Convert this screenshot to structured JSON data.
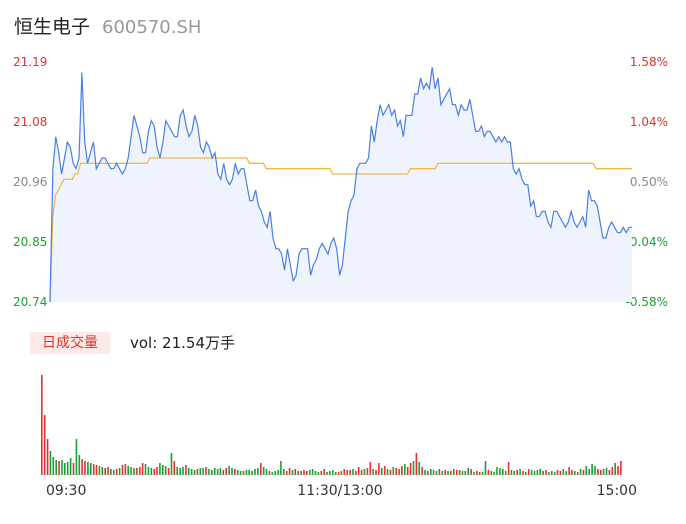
{
  "header": {
    "name": "恒生电子",
    "code": "600570.SH"
  },
  "colors": {
    "price": "#4a7fe6",
    "avg": "#f2b94a",
    "up": "#e0332e",
    "down": "#1aa135",
    "neutral": "#888888"
  },
  "volume_panel": {
    "label": "日成交量",
    "text": "vol: 21.54万手"
  },
  "chart_data": [
    {
      "type": "line",
      "ylim": [
        20.74,
        21.19
      ],
      "y_ticks_left": [
        "21.19",
        "21.08",
        "20.96",
        "20.85",
        "20.74"
      ],
      "y_ticks_right": [
        "1.58%",
        "1.04%",
        "0.50%",
        "-0.04%",
        "-0.58%"
      ],
      "x_ticks": [
        "09:30",
        "11:30/13:00",
        "15:00"
      ],
      "series": [
        {
          "values": [
            20.74,
            20.99,
            21.05,
            21.02,
            20.98,
            21.01,
            21.04,
            21.03,
            21.0,
            20.99,
            21.01,
            21.17,
            21.04,
            21.0,
            21.02,
            21.04,
            20.99,
            21.0,
            21.01,
            21.01,
            21.0,
            20.99,
            20.99,
            21.0,
            20.99,
            20.98,
            20.99,
            21.01,
            21.05,
            21.09,
            21.07,
            21.05,
            21.02,
            21.02,
            21.06,
            21.08,
            21.07,
            21.03,
            21.01,
            21.04,
            21.08,
            21.07,
            21.06,
            21.05,
            21.05,
            21.09,
            21.1,
            21.07,
            21.05,
            21.06,
            21.09,
            21.07,
            21.03,
            21.02,
            21.04,
            21.03,
            21.01,
            21.02,
            20.98,
            20.97,
            21.0,
            20.97,
            20.96,
            20.97,
            21.0,
            20.98,
            20.99,
            20.99,
            20.96,
            20.93,
            20.93,
            20.95,
            20.92,
            20.91,
            20.89,
            20.88,
            20.91,
            20.86,
            20.84,
            20.84,
            20.83,
            20.8,
            20.84,
            20.81,
            20.78,
            20.79,
            20.83,
            20.84,
            20.84,
            20.84,
            20.79,
            20.81,
            20.82,
            20.84,
            20.85,
            20.84,
            20.83,
            20.85,
            20.86,
            20.84,
            20.79,
            20.81,
            20.86,
            20.91,
            20.93,
            20.94,
            20.99,
            21.0,
            21.0,
            21.0,
            21.01,
            21.07,
            21.04,
            21.08,
            21.11,
            21.09,
            21.1,
            21.11,
            21.09,
            21.1,
            21.07,
            21.08,
            21.05,
            21.09,
            21.09,
            21.09,
            21.13,
            21.13,
            21.16,
            21.14,
            21.15,
            21.14,
            21.18,
            21.14,
            21.16,
            21.11,
            21.12,
            21.13,
            21.14,
            21.11,
            21.11,
            21.09,
            21.11,
            21.1,
            21.1,
            21.12,
            21.09,
            21.06,
            21.06,
            21.07,
            21.05,
            21.06,
            21.06,
            21.05,
            21.04,
            21.05,
            21.04,
            21.05,
            21.04,
            21.04,
            20.99,
            20.98,
            20.99,
            20.97,
            20.96,
            20.96,
            20.92,
            20.93,
            20.9,
            20.9,
            20.91,
            20.91,
            20.89,
            20.88,
            20.91,
            20.91,
            20.9,
            20.89,
            20.88,
            20.89,
            20.91,
            20.89,
            20.88,
            20.89,
            20.9,
            20.88,
            20.95,
            20.93,
            20.93,
            20.92,
            20.89,
            20.86,
            20.86,
            20.88,
            20.89,
            20.88,
            20.87,
            20.87,
            20.88,
            20.87,
            20.88,
            20.88
          ]
        },
        {
          "values": [
            20.74,
            20.9,
            20.94,
            20.95,
            20.96,
            20.97,
            20.97,
            20.97,
            20.97,
            20.98,
            20.98,
            21.0,
            21.0,
            21.0,
            21.0,
            21.0,
            21.0,
            21.0,
            21.0,
            21.0,
            21.0,
            21.0,
            21.0,
            21.0,
            21.0,
            21.0,
            21.0,
            21.0,
            21.0,
            21.0,
            21.0,
            21.0,
            21.0,
            21.0,
            21.0,
            21.0,
            21.01,
            21.01,
            21.01,
            21.01,
            21.01,
            21.01,
            21.01,
            21.01,
            21.01,
            21.01,
            21.01,
            21.01,
            21.01,
            21.01,
            21.01,
            21.01,
            21.01,
            21.01,
            21.01,
            21.01,
            21.01,
            21.01,
            21.01,
            21.01,
            21.01,
            21.01,
            21.01,
            21.01,
            21.01,
            21.01,
            21.01,
            21.01,
            21.01,
            21.01,
            21.01,
            21.01,
            21.0,
            21.0,
            21.0,
            21.0,
            21.0,
            21.0,
            20.99,
            20.99,
            20.99,
            20.99,
            20.99,
            20.99,
            20.99,
            20.99,
            20.99,
            20.99,
            20.99,
            20.99,
            20.99,
            20.99,
            20.99,
            20.99,
            20.99,
            20.99,
            20.99,
            20.99,
            20.99,
            20.99,
            20.99,
            20.99,
            20.98,
            20.98,
            20.98,
            20.98,
            20.98,
            20.98,
            20.98,
            20.98,
            20.98,
            20.98,
            20.98,
            20.98,
            20.98,
            20.98,
            20.98,
            20.98,
            20.98,
            20.98,
            20.98,
            20.98,
            20.98,
            20.98,
            20.98,
            20.98,
            20.98,
            20.98,
            20.98,
            20.98,
            20.99,
            20.99,
            20.99,
            20.99,
            20.99,
            20.99,
            20.99,
            20.99,
            20.99,
            20.99,
            21.0,
            21.0,
            21.0,
            21.0,
            21.0,
            21.0,
            21.0,
            21.0,
            21.0,
            21.0,
            21.0,
            21.0,
            21.0,
            21.0,
            21.0,
            21.0,
            21.0,
            21.0,
            21.0,
            21.0,
            21.0,
            21.0,
            21.0,
            21.0,
            21.0,
            21.0,
            21.0,
            21.0,
            21.0,
            21.0,
            21.0,
            21.0,
            21.0,
            21.0,
            21.0,
            21.0,
            21.0,
            21.0,
            21.0,
            21.0,
            21.0,
            21.0,
            21.0,
            21.0,
            21.0,
            21.0,
            21.0,
            21.0,
            21.0,
            21.0,
            21.0,
            21.0,
            21.0,
            21.0,
            21.0,
            21.0,
            21.0,
            20.99,
            20.99,
            20.99,
            20.99,
            20.99,
            20.99,
            20.99,
            20.99,
            20.99,
            20.99,
            20.99,
            20.99,
            20.99,
            20.99
          ]
        }
      ]
    },
    {
      "type": "bar",
      "series": [
        {
          "values": [
            100,
            60,
            36,
            24,
            18,
            15,
            14,
            15,
            12,
            13,
            17,
            12,
            36,
            20,
            16,
            14,
            13,
            12,
            11,
            10,
            9,
            8,
            7,
            8,
            6,
            5,
            6,
            7,
            10,
            11,
            9,
            8,
            7,
            7,
            8,
            12,
            11,
            8,
            7,
            6,
            8,
            12,
            10,
            9,
            7,
            22,
            14,
            8,
            7,
            8,
            10,
            7,
            6,
            5,
            6,
            7,
            7,
            8,
            6,
            5,
            7,
            6,
            7,
            5,
            7,
            9,
            7,
            6,
            5,
            4,
            4,
            5,
            5,
            4,
            6,
            7,
            12,
            8,
            6,
            4,
            3,
            4,
            5,
            14,
            6,
            4,
            7,
            5,
            6,
            4,
            4,
            5,
            4,
            5,
            6,
            4,
            3,
            4,
            6,
            3,
            4,
            5,
            3,
            3,
            4,
            6,
            5,
            5,
            6,
            4,
            8,
            5,
            6,
            7,
            13,
            6,
            5,
            12,
            7,
            9,
            6,
            5,
            8,
            7,
            6,
            9,
            11,
            8,
            12,
            14,
            22,
            13,
            8,
            5,
            4,
            6,
            5,
            4,
            6,
            4,
            5,
            4,
            4,
            6,
            5,
            5,
            4,
            4,
            7,
            6,
            3,
            4,
            3,
            3,
            14,
            5,
            4,
            3,
            8,
            7,
            6,
            4,
            13,
            5,
            4,
            5,
            6,
            4,
            3,
            6,
            5,
            4,
            5,
            6,
            4,
            5,
            3,
            4,
            3,
            5,
            4,
            6,
            4,
            8,
            5,
            4,
            3,
            6,
            5,
            9,
            6,
            11,
            9,
            6,
            5,
            6,
            7,
            5,
            8,
            12,
            9,
            14
          ]
        }
      ]
    }
  ]
}
